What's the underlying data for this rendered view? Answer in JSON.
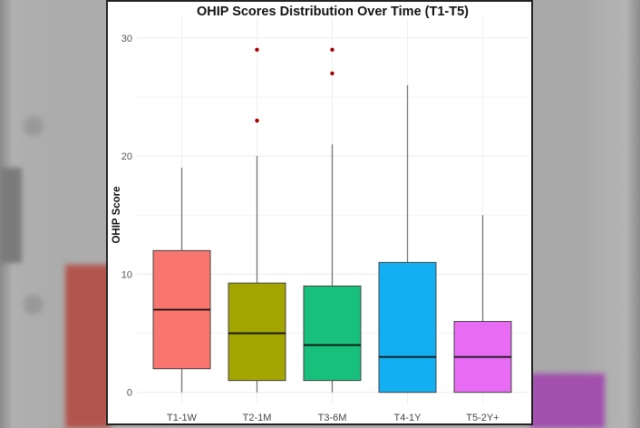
{
  "chart_data": {
    "type": "box",
    "title": "OHIP Scores Distribution Over Time (T1-T5)",
    "xlabel": "",
    "ylabel": "OHIP Score",
    "ylim": [
      0,
      30
    ],
    "yticks": [
      "0",
      "10",
      "20",
      "30"
    ],
    "grid": true,
    "legend": "none",
    "categories": [
      "T1-1W",
      "T2-1M",
      "T3-6M",
      "T4-1Y",
      "T5-2Y+"
    ],
    "boxes": [
      {
        "min": 0,
        "q1": 2,
        "median": 7,
        "q3": 12,
        "max": 19,
        "outliers": [],
        "color": "#F8766D"
      },
      {
        "min": 0,
        "q1": 1,
        "median": 5,
        "q3": 9.25,
        "max": 20,
        "outliers": [
          23,
          29
        ],
        "color": "#A3A500"
      },
      {
        "min": 0,
        "q1": 1,
        "median": 4,
        "q3": 9,
        "max": 21,
        "outliers": [
          27,
          29
        ],
        "color": "#17C17C"
      },
      {
        "min": 0,
        "q1": 0,
        "median": 3,
        "q3": 11,
        "max": 26,
        "outliers": [],
        "color": "#12B0F2"
      },
      {
        "min": 0,
        "q1": 0,
        "median": 3,
        "q3": 6,
        "max": 15,
        "outliers": [],
        "color": "#E76BF3"
      }
    ],
    "outlier_color": "#A50000"
  }
}
